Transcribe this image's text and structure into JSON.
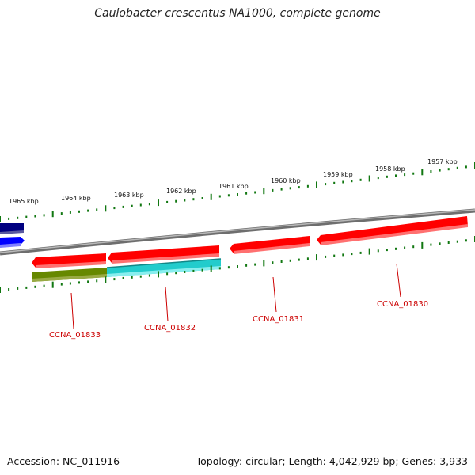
{
  "title": "Caulobacter crescentus NA1000, complete genome",
  "footer": {
    "accession": "Accession: NC_011916",
    "summary": "Topology: circular; Length: 4,042,929 bp; Genes: 3,933"
  },
  "ruler": {
    "labels": [
      "1965 kbp",
      "1964 kbp",
      "1963 kbp",
      "1962 kbp",
      "1961 kbp",
      "1960 kbp",
      "1959 kbp",
      "1958 kbp",
      "1957 kbp"
    ]
  },
  "genes": [
    {
      "label": "CCNA_01833"
    },
    {
      "label": "CCNA_01832"
    },
    {
      "label": "CCNA_01831"
    },
    {
      "label": "CCNA_01830"
    }
  ],
  "colors": {
    "gene_red": "#ff0000",
    "backbone": "#888888",
    "tick_green": "#117711",
    "navy_feature": "#000080",
    "blue_feature": "#0000ff",
    "olive_feature": "#668800",
    "cyan_feature": "#22cccc"
  }
}
